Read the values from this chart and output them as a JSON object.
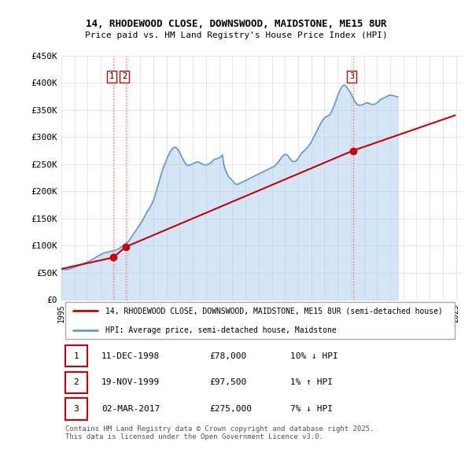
{
  "title": "14, RHODEWOOD CLOSE, DOWNSWOOD, MAIDSTONE, ME15 8UR",
  "subtitle": "Price paid vs. HM Land Registry's House Price Index (HPI)",
  "ylim": [
    0,
    450000
  ],
  "xlim_start": 1995.0,
  "xlim_end": 2025.5,
  "yticks": [
    0,
    50000,
    100000,
    150000,
    200000,
    250000,
    300000,
    350000,
    400000,
    450000
  ],
  "ytick_labels": [
    "£0",
    "£50K",
    "£100K",
    "£150K",
    "£200K",
    "£250K",
    "£300K",
    "£350K",
    "£400K",
    "£450K"
  ],
  "xticks": [
    1995,
    1996,
    1997,
    1998,
    1999,
    2000,
    2001,
    2002,
    2003,
    2004,
    2005,
    2006,
    2007,
    2008,
    2009,
    2010,
    2011,
    2012,
    2013,
    2014,
    2015,
    2016,
    2017,
    2018,
    2019,
    2020,
    2021,
    2022,
    2023,
    2024,
    2025
  ],
  "red_line_color": "#cc0000",
  "blue_line_color": "#6699cc",
  "blue_fill_color": "#aaccee",
  "grid_color": "#dddddd",
  "background_color": "#ffffff",
  "vline_color": "#ff6666",
  "vline_style": ":",
  "legend_label_red": "14, RHODEWOOD CLOSE, DOWNSWOOD, MAIDSTONE, ME15 8UR (semi-detached house)",
  "legend_label_blue": "HPI: Average price, semi-detached house, Maidstone",
  "transactions": [
    {
      "num": 1,
      "date": "11-DEC-1998",
      "price": "£78,000",
      "hpi": "10% ↓ HPI",
      "year": 1998.94,
      "value": 78000
    },
    {
      "num": 2,
      "date": "19-NOV-1999",
      "price": "£97,500",
      "hpi": "1% ↑ HPI",
      "year": 1999.88,
      "value": 97500
    },
    {
      "num": 3,
      "date": "02-MAR-2017",
      "price": "£275,000",
      "hpi": "7% ↓ HPI",
      "year": 2017.17,
      "value": 275000
    }
  ],
  "footer": "Contains HM Land Registry data © Crown copyright and database right 2025.\nThis data is licensed under the Open Government Licence v3.0.",
  "hpi_years": [
    1995.0,
    1995.08,
    1995.17,
    1995.25,
    1995.33,
    1995.42,
    1995.5,
    1995.58,
    1995.67,
    1995.75,
    1995.83,
    1995.92,
    1996.0,
    1996.08,
    1996.17,
    1996.25,
    1996.33,
    1996.42,
    1996.5,
    1996.58,
    1996.67,
    1996.75,
    1996.83,
    1996.92,
    1997.0,
    1997.08,
    1997.17,
    1997.25,
    1997.33,
    1997.42,
    1997.5,
    1997.58,
    1997.67,
    1997.75,
    1997.83,
    1997.92,
    1998.0,
    1998.08,
    1998.17,
    1998.25,
    1998.33,
    1998.42,
    1998.5,
    1998.58,
    1998.67,
    1998.75,
    1998.83,
    1998.92,
    1999.0,
    1999.08,
    1999.17,
    1999.25,
    1999.33,
    1999.42,
    1999.5,
    1999.58,
    1999.67,
    1999.75,
    1999.83,
    1999.92,
    2000.0,
    2000.08,
    2000.17,
    2000.25,
    2000.33,
    2000.42,
    2000.5,
    2000.58,
    2000.67,
    2000.75,
    2000.83,
    2000.92,
    2001.0,
    2001.08,
    2001.17,
    2001.25,
    2001.33,
    2001.42,
    2001.5,
    2001.58,
    2001.67,
    2001.75,
    2001.83,
    2001.92,
    2002.0,
    2002.08,
    2002.17,
    2002.25,
    2002.33,
    2002.42,
    2002.5,
    2002.58,
    2002.67,
    2002.75,
    2002.83,
    2002.92,
    2003.0,
    2003.08,
    2003.17,
    2003.25,
    2003.33,
    2003.42,
    2003.5,
    2003.58,
    2003.67,
    2003.75,
    2003.83,
    2003.92,
    2004.0,
    2004.08,
    2004.17,
    2004.25,
    2004.33,
    2004.42,
    2004.5,
    2004.58,
    2004.67,
    2004.75,
    2004.83,
    2004.92,
    2005.0,
    2005.08,
    2005.17,
    2005.25,
    2005.33,
    2005.42,
    2005.5,
    2005.58,
    2005.67,
    2005.75,
    2005.83,
    2005.92,
    2006.0,
    2006.08,
    2006.17,
    2006.25,
    2006.33,
    2006.42,
    2006.5,
    2006.58,
    2006.67,
    2006.75,
    2006.83,
    2006.92,
    2007.0,
    2007.08,
    2007.17,
    2007.25,
    2007.33,
    2007.42,
    2007.5,
    2007.58,
    2007.67,
    2007.75,
    2007.83,
    2007.92,
    2008.0,
    2008.08,
    2008.17,
    2008.25,
    2008.33,
    2008.42,
    2008.5,
    2008.58,
    2008.67,
    2008.75,
    2008.83,
    2008.92,
    2009.0,
    2009.08,
    2009.17,
    2009.25,
    2009.33,
    2009.42,
    2009.5,
    2009.58,
    2009.67,
    2009.75,
    2009.83,
    2009.92,
    2010.0,
    2010.08,
    2010.17,
    2010.25,
    2010.33,
    2010.42,
    2010.5,
    2010.58,
    2010.67,
    2010.75,
    2010.83,
    2010.92,
    2011.0,
    2011.08,
    2011.17,
    2011.25,
    2011.33,
    2011.42,
    2011.5,
    2011.58,
    2011.67,
    2011.75,
    2011.83,
    2011.92,
    2012.0,
    2012.08,
    2012.17,
    2012.25,
    2012.33,
    2012.42,
    2012.5,
    2012.58,
    2012.67,
    2012.75,
    2012.83,
    2012.92,
    2013.0,
    2013.08,
    2013.17,
    2013.25,
    2013.33,
    2013.42,
    2013.5,
    2013.58,
    2013.67,
    2013.75,
    2013.83,
    2013.92,
    2014.0,
    2014.08,
    2014.17,
    2014.25,
    2014.33,
    2014.42,
    2014.5,
    2014.58,
    2014.67,
    2014.75,
    2014.83,
    2014.92,
    2015.0,
    2015.08,
    2015.17,
    2015.25,
    2015.33,
    2015.42,
    2015.5,
    2015.58,
    2015.67,
    2015.75,
    2015.83,
    2015.92,
    2016.0,
    2016.08,
    2016.17,
    2016.25,
    2016.33,
    2016.42,
    2016.5,
    2016.58,
    2016.67,
    2016.75,
    2016.83,
    2016.92,
    2017.0,
    2017.08,
    2017.17,
    2017.25,
    2017.33,
    2017.42,
    2017.5,
    2017.58,
    2017.67,
    2017.75,
    2017.83,
    2017.92,
    2018.0,
    2018.08,
    2018.17,
    2018.25,
    2018.33,
    2018.42,
    2018.5,
    2018.58,
    2018.67,
    2018.75,
    2018.83,
    2018.92,
    2019.0,
    2019.08,
    2019.17,
    2019.25,
    2019.33,
    2019.42,
    2019.5,
    2019.58,
    2019.67,
    2019.75,
    2019.83,
    2019.92,
    2020.0,
    2020.08,
    2020.17,
    2020.25,
    2020.33,
    2020.42,
    2020.5,
    2020.58,
    2020.67,
    2020.75,
    2020.83,
    2020.92,
    2021.0,
    2021.08,
    2021.17,
    2021.25,
    2021.33,
    2021.42,
    2021.5,
    2021.58,
    2021.67,
    2021.75,
    2021.83,
    2021.92,
    2022.0,
    2022.08,
    2022.17,
    2022.25,
    2022.33,
    2022.42,
    2022.5,
    2022.58,
    2022.67,
    2022.75,
    2022.83,
    2022.92,
    2023.0,
    2023.08,
    2023.17,
    2023.25,
    2023.33,
    2023.42,
    2023.5,
    2023.58,
    2023.67,
    2023.75,
    2023.83,
    2023.92,
    2024.0,
    2024.08,
    2024.17,
    2024.25,
    2024.33,
    2024.42,
    2024.5,
    2024.58,
    2024.67,
    2024.75,
    2024.83,
    2024.92
  ],
  "hpi_values": [
    57000,
    56500,
    56200,
    56000,
    55800,
    56100,
    56500,
    57000,
    57500,
    58200,
    59000,
    59800,
    60500,
    61200,
    62000,
    62800,
    63500,
    64200,
    65000,
    65800,
    66700,
    67500,
    68300,
    69200,
    70200,
    71000,
    72000,
    73000,
    74200,
    75400,
    76500,
    77800,
    79000,
    80200,
    81500,
    82500,
    83500,
    84500,
    85500,
    86300,
    87000,
    87500,
    88000,
    88500,
    89000,
    89500,
    89800,
    90000,
    90500,
    91200,
    92000,
    92800,
    93700,
    95000,
    96500,
    98000,
    99500,
    101000,
    102500,
    104000,
    105500,
    107500,
    110000,
    113000,
    116000,
    119000,
    122000,
    125000,
    128000,
    131000,
    134000,
    137000,
    140000,
    143000,
    146500,
    150000,
    154000,
    158000,
    162000,
    165000,
    168000,
    171000,
    175000,
    179000,
    184000,
    190000,
    196000,
    203000,
    210000,
    217000,
    224000,
    231000,
    238000,
    244000,
    249000,
    254000,
    259000,
    264000,
    268000,
    272000,
    275000,
    278000,
    280000,
    281000,
    281000,
    280000,
    278000,
    275000,
    271000,
    267000,
    263000,
    259000,
    255000,
    252000,
    249000,
    248000,
    248000,
    249000,
    249000,
    250000,
    251000,
    252000,
    253000,
    254000,
    254000,
    254000,
    253000,
    252000,
    251000,
    250000,
    249000,
    249000,
    249000,
    249000,
    250000,
    251000,
    252000,
    254000,
    256000,
    258000,
    259000,
    260000,
    260000,
    261000,
    262000,
    263000,
    265000,
    267000,
    252000,
    243000,
    238000,
    233000,
    229000,
    226000,
    224000,
    222000,
    220000,
    218000,
    215000,
    213000,
    213000,
    213000,
    214000,
    215000,
    216000,
    217000,
    218000,
    219000,
    220000,
    221000,
    222000,
    223000,
    224000,
    225000,
    226000,
    227000,
    228000,
    229000,
    230000,
    231000,
    232000,
    233000,
    234000,
    235000,
    236000,
    237000,
    238000,
    239000,
    240000,
    241000,
    242000,
    243000,
    244000,
    245000,
    246000,
    248000,
    250000,
    252000,
    254000,
    257000,
    260000,
    263000,
    265000,
    267000,
    268000,
    268000,
    267000,
    265000,
    262000,
    259000,
    257000,
    255000,
    255000,
    255000,
    256000,
    258000,
    261000,
    264000,
    267000,
    270000,
    272000,
    274000,
    276000,
    278000,
    280000,
    282000,
    285000,
    288000,
    291000,
    295000,
    299000,
    303000,
    307000,
    311000,
    315000,
    319000,
    323000,
    327000,
    330000,
    333000,
    335000,
    337000,
    338000,
    339000,
    340000,
    342000,
    345000,
    349000,
    354000,
    359000,
    364000,
    370000,
    376000,
    381000,
    386000,
    390000,
    393000,
    395000,
    396000,
    395000,
    393000,
    390000,
    387000,
    384000,
    381000,
    377000,
    373000,
    369000,
    365000,
    362000,
    360000,
    359000,
    359000,
    359000,
    359000,
    360000,
    361000,
    362000,
    363000,
    363000,
    363000,
    362000,
    361000,
    360000,
    360000,
    360000,
    361000,
    362000,
    363000,
    365000,
    367000,
    369000,
    370000,
    371000,
    372000,
    373000,
    374000,
    375000,
    376000,
    377000,
    377000,
    377000,
    377000,
    376000,
    376000,
    375000,
    374000,
    374000
  ],
  "red_years": [
    1995.0,
    1998.94,
    1999.88,
    2017.17,
    2024.92
  ],
  "red_values": [
    57000,
    78000,
    97500,
    275000,
    340000
  ]
}
